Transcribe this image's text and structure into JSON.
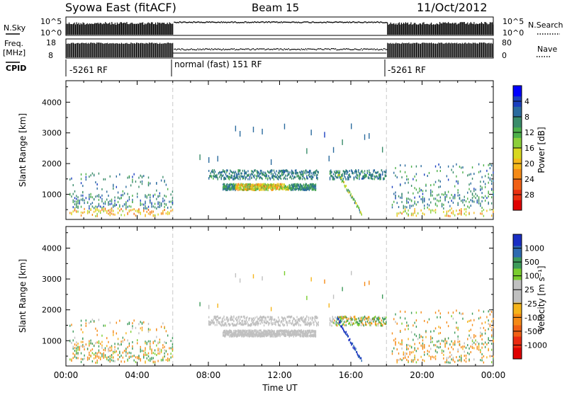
{
  "header": {
    "station": "Syowa East (fitACF)",
    "beam": "Beam 15",
    "date": "11/Oct/2012"
  },
  "strips": {
    "nsky_label": "N.Sky",
    "nsky_ticks": [
      "10^5",
      "10^0"
    ],
    "nsearch_label": "N.Search",
    "freq_label": "Freq.",
    "freq_unit": "[MHz]",
    "freq_ticks": [
      "18",
      "8"
    ],
    "nave_label": "Nave",
    "nave_ticks": [
      "80",
      "0"
    ],
    "cpid_label": "CPID",
    "cpid_segments": [
      "-5261 RF",
      "normal (fast) 151 RF",
      "-5261 RF"
    ]
  },
  "chart_data": [
    {
      "type": "heatmap",
      "panel": "power",
      "ylabel": "Slant Range [km]",
      "xlabel": "Time UT",
      "x_ticks": [
        "00:00",
        "04:00",
        "08:00",
        "12:00",
        "16:00",
        "20:00",
        "00:00"
      ],
      "x_range_hours": [
        0,
        24
      ],
      "y_ticks": [
        1000,
        2000,
        3000,
        4000
      ],
      "y_range_km": [
        180,
        4700
      ],
      "mode_boundaries_hours": [
        6,
        18
      ],
      "colorbar": {
        "label": "Power [dB]",
        "ticks": [
          "4",
          "8",
          "12",
          "16",
          "20",
          "24",
          "28"
        ],
        "colors": [
          "#0000ff",
          "#1a3fbf",
          "#2b6b9e",
          "#3a8c6a",
          "#4db04a",
          "#8ccf3a",
          "#d8d820",
          "#f5b81a",
          "#f58a16",
          "#f06014",
          "#ea3010",
          "#e00000"
        ]
      },
      "features": [
        {
          "name": "evening echo band",
          "t": [
            8,
            14
          ],
          "range_km": [
            1100,
            1300
          ],
          "power_db": 20
        },
        {
          "name": "far range band",
          "t": [
            8,
            18
          ],
          "range_km": [
            1400,
            1800
          ],
          "power_db": 6
        },
        {
          "name": "descending trace",
          "t": [
            15.2,
            16.6
          ],
          "range_km": [
            300,
            1700
          ],
          "power_db": 12
        }
      ]
    },
    {
      "type": "heatmap",
      "panel": "velocity",
      "ylabel": "Slant Range [km]",
      "xlabel": "Time UT",
      "x_ticks": [
        "00:00",
        "04:00",
        "08:00",
        "12:00",
        "16:00",
        "20:00",
        "00:00"
      ],
      "x_range_hours": [
        0,
        24
      ],
      "y_ticks": [
        1000,
        2000,
        3000,
        4000
      ],
      "y_range_km": [
        180,
        4700
      ],
      "mode_boundaries_hours": [
        6,
        18
      ],
      "colorbar": {
        "label": "Velocity [m s⁻¹]",
        "ticks": [
          "1000",
          "500",
          "100",
          "25",
          "-25",
          "-100",
          "-500",
          "-1000"
        ],
        "colors": [
          "#1a2fc4",
          "#2e6ab0",
          "#3d9a5a",
          "#7acd2e",
          "#c0c0c0",
          "#c0c0c0",
          "#f5b41a",
          "#f58a16",
          "#f06014",
          "#ea2a10",
          "#e00000"
        ]
      }
    }
  ]
}
